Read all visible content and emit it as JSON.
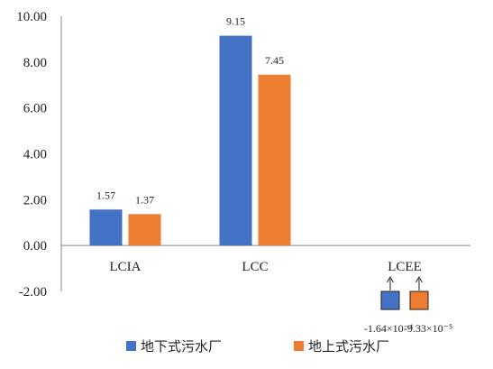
{
  "chart_data": {
    "type": "bar",
    "categories": [
      "LCIA",
      "LCC",
      "LCEE"
    ],
    "series": [
      {
        "name": "地下式污水厂",
        "color": "#4472C4",
        "values": [
          1.57,
          9.15,
          -0.000164
        ],
        "labels": [
          "1.57",
          "9.15",
          "-1.64×10⁻⁴"
        ]
      },
      {
        "name": "地上式污水厂",
        "color": "#ED7D31",
        "values": [
          1.37,
          7.45,
          -9.33e-05
        ],
        "labels": [
          "1.37",
          "7.45",
          "-9.33×10⁻⁵"
        ]
      }
    ],
    "ylim": [
      -2,
      10
    ],
    "yticks": [
      "10.00",
      "8.00",
      "6.00",
      "4.00",
      "2.00",
      "0.00",
      "-2.00"
    ],
    "legend": "bottom",
    "grid": false
  }
}
